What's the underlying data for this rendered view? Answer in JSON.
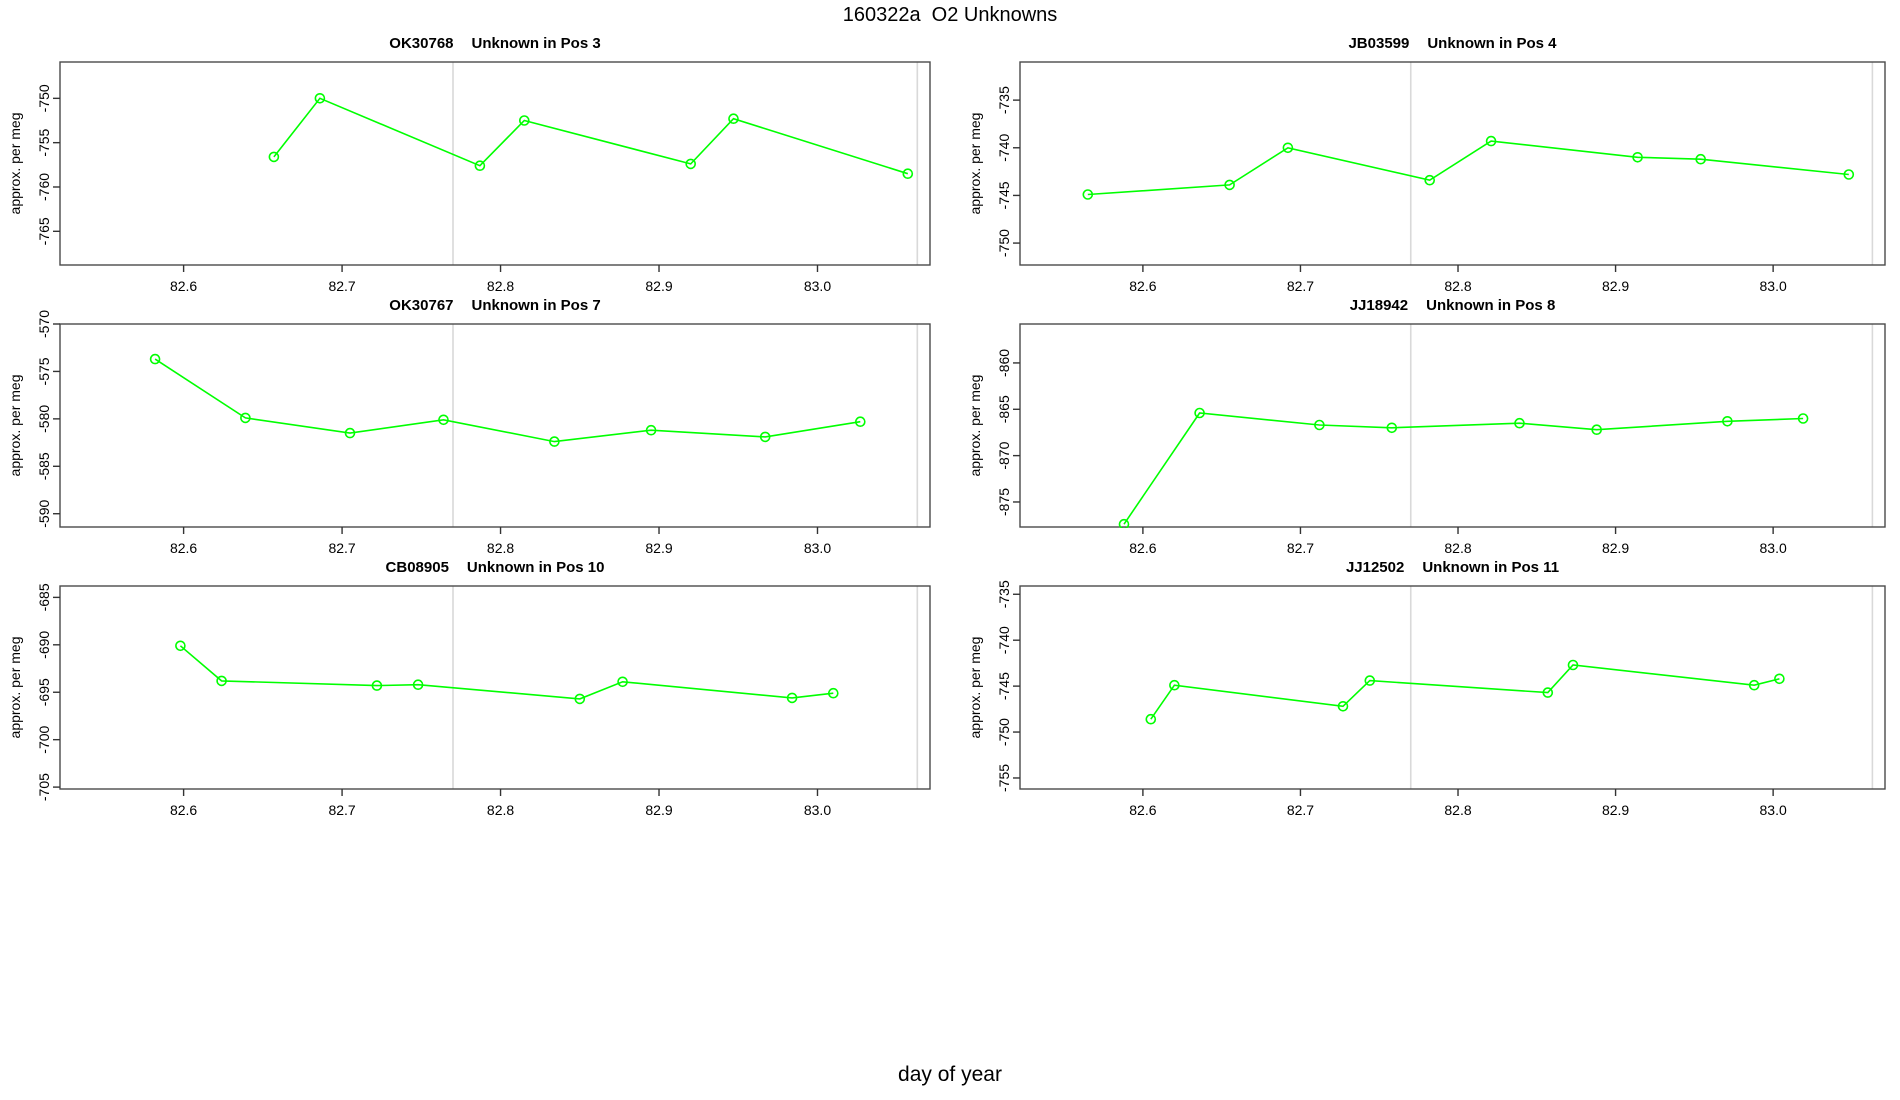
{
  "page": {
    "title": "160322a  O2 Unknowns",
    "xlabel": "day of year"
  },
  "colors": {
    "series": "#00ff00",
    "vline": "#d9d9d9",
    "box": "#4a4a4a",
    "tick": "#333333",
    "text": "#000000",
    "background": "#ffffff"
  },
  "chart_data": [
    {
      "type": "line",
      "id": "OK30768",
      "subtitle": "Unknown in Pos 3",
      "ylabel": "approx. per meg",
      "xlabel": "day of year",
      "xlim": [
        82.522,
        83.071
      ],
      "ylim": [
        -768.8,
        -745.9
      ],
      "x_tick_values": [
        82.6,
        82.7,
        82.8,
        82.9,
        83.0
      ],
      "x_ticks": [
        "82.6",
        "82.7",
        "82.8",
        "82.9",
        "83.0"
      ],
      "y_ticks": [
        -765,
        -760,
        -755,
        -750
      ],
      "vlines": [
        82.77,
        83.063
      ],
      "x": [
        82.657,
        82.686,
        82.787,
        82.815,
        82.92,
        82.947,
        83.057
      ],
      "y": [
        -756.6,
        -750.0,
        -757.6,
        -752.5,
        -757.4,
        -752.3,
        -758.5
      ]
    },
    {
      "type": "line",
      "id": "JB03599",
      "subtitle": "Unknown in Pos 4",
      "ylabel": "approx. per meg",
      "xlabel": "day of year",
      "xlim": [
        82.522,
        83.071
      ],
      "ylim": [
        -752.3,
        -731.0
      ],
      "x_tick_values": [
        82.6,
        82.7,
        82.8,
        82.9,
        83.0
      ],
      "x_ticks": [
        "82.6",
        "82.7",
        "82.8",
        "82.9",
        "83.0"
      ],
      "y_ticks": [
        -750,
        -745,
        -740,
        -735
      ],
      "vlines": [
        82.77,
        83.063
      ],
      "x": [
        82.565,
        82.655,
        82.692,
        82.782,
        82.821,
        82.914,
        82.954,
        83.048
      ],
      "y": [
        -744.9,
        -743.9,
        -740.0,
        -743.4,
        -739.3,
        -741.0,
        -741.2,
        -742.8
      ]
    },
    {
      "type": "line",
      "id": "OK30767",
      "subtitle": "Unknown in Pos 7",
      "ylabel": "approx. per meg",
      "xlabel": "day of year",
      "xlim": [
        82.522,
        83.071
      ],
      "ylim": [
        -591.4,
        -570.0
      ],
      "x_tick_values": [
        82.6,
        82.7,
        82.8,
        82.9,
        83.0
      ],
      "x_ticks": [
        "82.6",
        "82.7",
        "82.8",
        "82.9",
        "83.0"
      ],
      "y_ticks": [
        -590,
        -585,
        -580,
        -575,
        -570
      ],
      "vlines": [
        82.77,
        83.063
      ],
      "x": [
        82.582,
        82.639,
        82.705,
        82.764,
        82.834,
        82.895,
        82.967,
        83.027
      ],
      "y": [
        -573.7,
        -579.9,
        -581.5,
        -580.1,
        -582.4,
        -581.2,
        -581.9,
        -580.3
      ]
    },
    {
      "type": "line",
      "id": "JJ18942",
      "subtitle": "Unknown in Pos 8",
      "ylabel": "approx. per meg",
      "xlabel": "day of year",
      "xlim": [
        82.522,
        83.071
      ],
      "ylim": [
        -877.7,
        -855.8
      ],
      "x_tick_values": [
        82.6,
        82.7,
        82.8,
        82.9,
        83.0
      ],
      "x_ticks": [
        "82.6",
        "82.7",
        "82.8",
        "82.9",
        "83.0"
      ],
      "y_ticks": [
        -875,
        -870,
        -865,
        -860
      ],
      "vlines": [
        82.77,
        83.063
      ],
      "x": [
        82.588,
        82.636,
        82.712,
        82.758,
        82.839,
        82.888,
        82.971,
        83.019
      ],
      "y": [
        -877.4,
        -865.4,
        -866.7,
        -867.0,
        -866.5,
        -867.2,
        -866.3,
        -866.0
      ]
    },
    {
      "type": "line",
      "id": "CB08905",
      "subtitle": "Unknown in Pos 10",
      "ylabel": "approx. per meg",
      "xlabel": "day of year",
      "xlim": [
        82.522,
        83.071
      ],
      "ylim": [
        -705.2,
        -683.8
      ],
      "x_tick_values": [
        82.6,
        82.7,
        82.8,
        82.9,
        83.0
      ],
      "x_ticks": [
        "82.6",
        "82.7",
        "82.8",
        "82.9",
        "83.0"
      ],
      "y_ticks": [
        -705,
        -700,
        -695,
        -690,
        -685
      ],
      "vlines": [
        82.77,
        83.063
      ],
      "x": [
        82.598,
        82.624,
        82.722,
        82.748,
        82.85,
        82.877,
        82.984,
        83.01
      ],
      "y": [
        -690.1,
        -693.8,
        -694.3,
        -694.2,
        -695.7,
        -693.9,
        -695.6,
        -695.1
      ]
    },
    {
      "type": "line",
      "id": "JJ12502",
      "subtitle": "Unknown in Pos 11",
      "ylabel": "approx. per meg",
      "xlabel": "day of year",
      "xlim": [
        82.522,
        83.071
      ],
      "ylim": [
        -756.2,
        -734.1
      ],
      "x_tick_values": [
        82.6,
        82.7,
        82.8,
        82.9,
        83.0
      ],
      "x_ticks": [
        "82.6",
        "82.7",
        "82.8",
        "82.9",
        "83.0"
      ],
      "y_ticks": [
        -755,
        -750,
        -745,
        -740,
        -735
      ],
      "vlines": [
        82.77,
        83.063
      ],
      "x": [
        82.605,
        82.62,
        82.727,
        82.744,
        82.857,
        82.873,
        82.988,
        83.004
      ],
      "y": [
        -748.6,
        -744.9,
        -747.2,
        -744.4,
        -745.7,
        -742.7,
        -744.9,
        -744.2
      ]
    }
  ]
}
